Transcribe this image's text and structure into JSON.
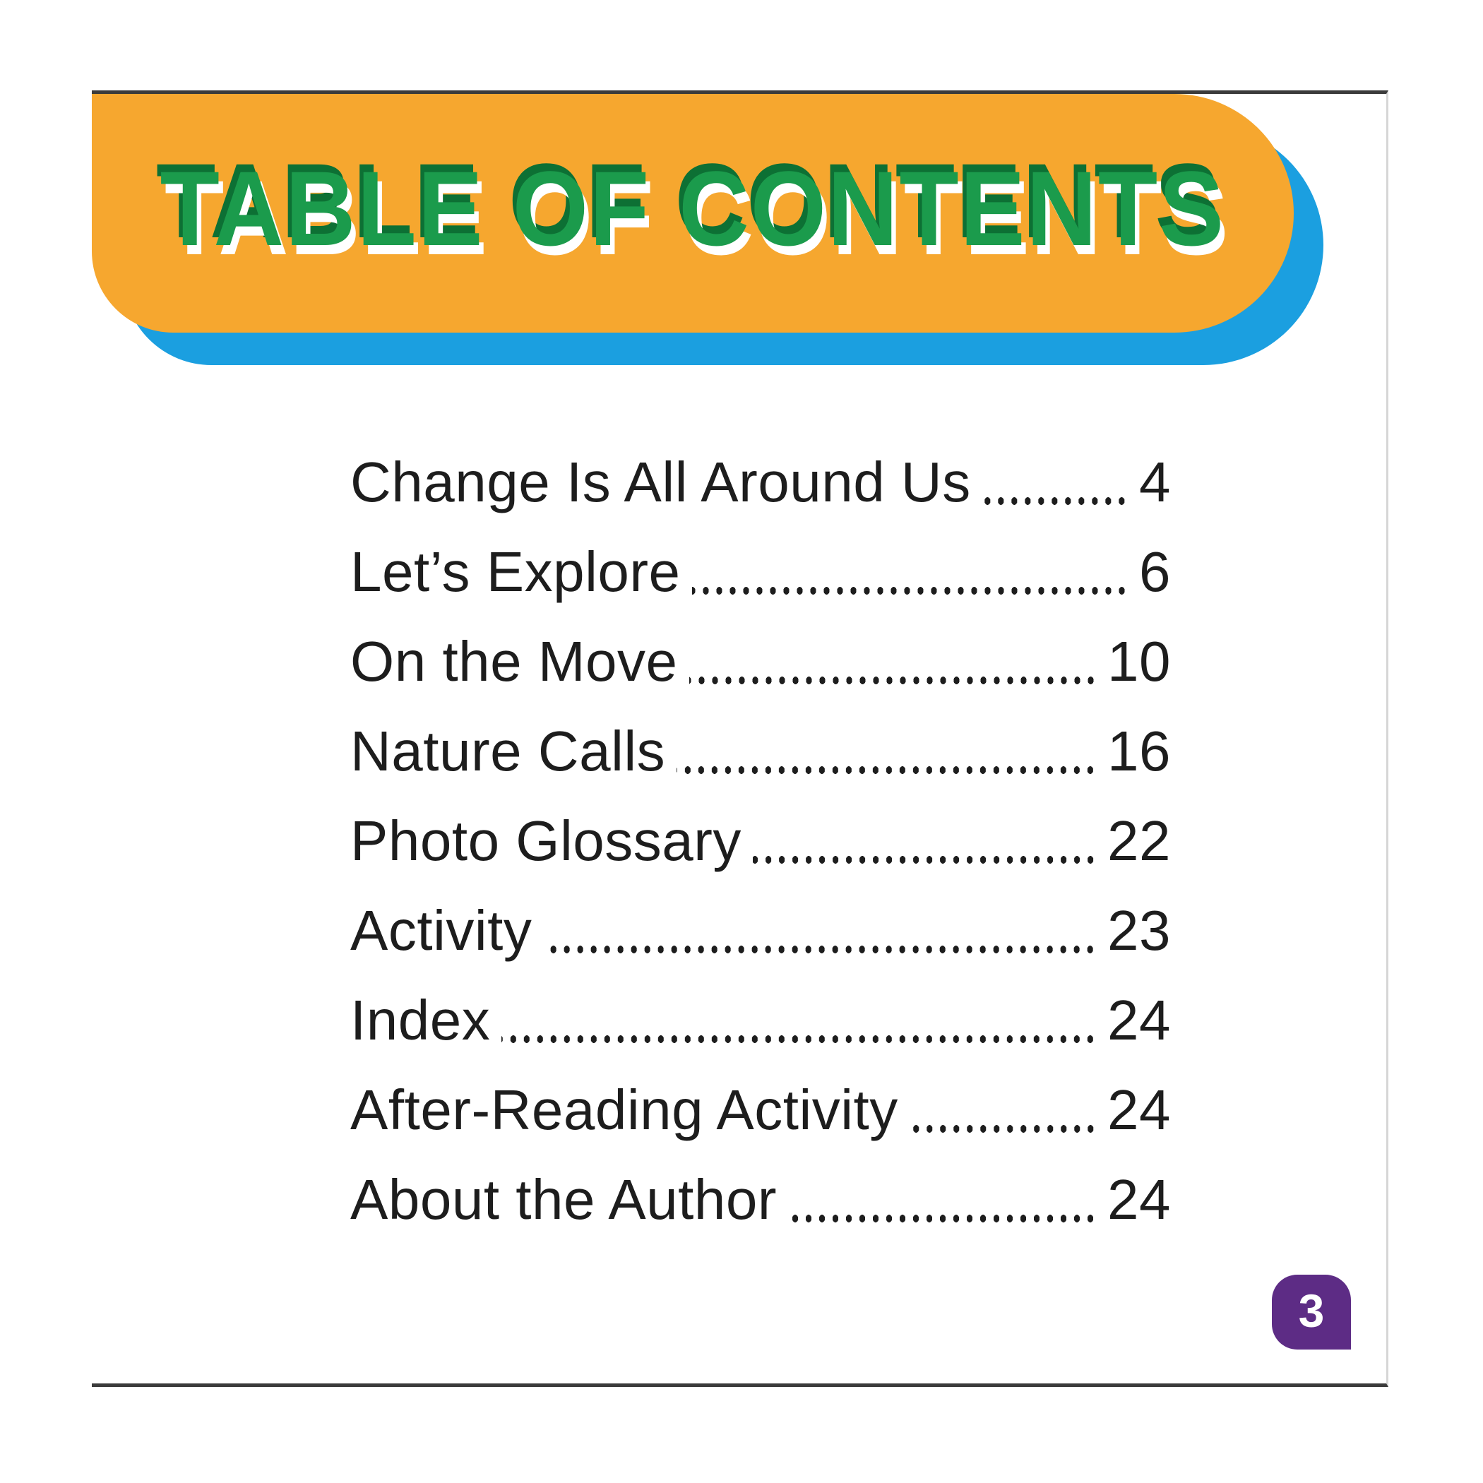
{
  "page": {
    "title": "TABLE OF CONTENTS",
    "page_number": "3",
    "toc": [
      {
        "label": "Change Is All Around Us",
        "page": "4"
      },
      {
        "label": "Let’s Explore",
        "page": "6"
      },
      {
        "label": "On the Move",
        "page": "10"
      },
      {
        "label": "Nature Calls",
        "page": "16"
      },
      {
        "label": "Photo Glossary",
        "page": "22"
      },
      {
        "label": "Activity",
        "page": "23"
      },
      {
        "label": "Index",
        "page": "24"
      },
      {
        "label": "After-Reading Activity",
        "page": "24"
      },
      {
        "label": "About the Author",
        "page": "24"
      }
    ]
  },
  "colors": {
    "orange": "#f6a72f",
    "blue": "#1b9fe0",
    "green": "#1b9b4c",
    "green_dark": "#0d7034",
    "white_shadow": "#ffffff",
    "text": "#1d1d1d",
    "purple": "#5d2c85",
    "edge": "#3b3b3b",
    "page_edge": "#d6d6d6"
  }
}
